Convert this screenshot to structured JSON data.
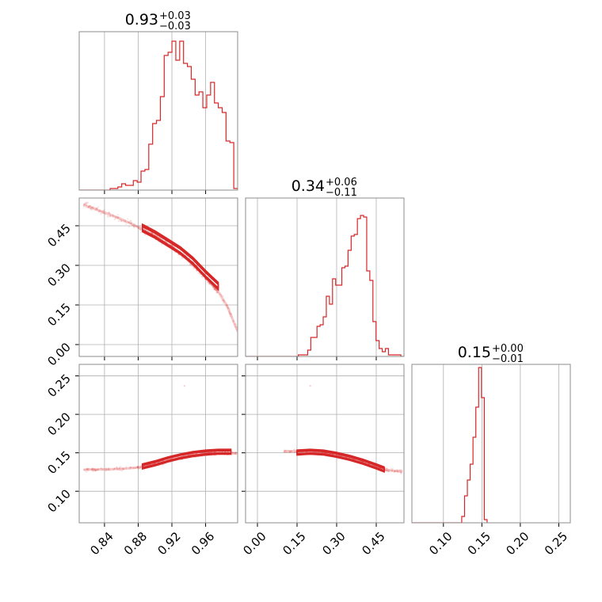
{
  "colors": {
    "accent": "#d62728",
    "frame": "#8c8c8c",
    "grid": "#b0b0b0"
  },
  "chart_data": {
    "type": "corner",
    "parameters": [
      {
        "title_value": "0.93",
        "title_plus": "+0.03",
        "title_minus": "−0.03",
        "range": [
          0.81,
          0.998
        ],
        "ticks": [
          0.84,
          0.88,
          0.92,
          0.96
        ],
        "tick_labels": [
          "0.84",
          "0.88",
          "0.92",
          "0.96"
        ]
      },
      {
        "title_value": "0.34",
        "title_plus": "+0.06",
        "title_minus": "−0.11",
        "range": [
          -0.045,
          0.555
        ],
        "ticks": [
          0.0,
          0.15,
          0.3,
          0.45
        ],
        "tick_labels": [
          "0.00",
          "0.15",
          "0.30",
          "0.45"
        ]
      },
      {
        "title_value": "0.15",
        "title_plus": "+0.00",
        "title_minus": "−0.01",
        "range": [
          0.059,
          0.265
        ],
        "ticks": [
          0.1,
          0.15,
          0.2,
          0.25
        ],
        "tick_labels": [
          "0.10",
          "0.15",
          "0.20",
          "0.25"
        ]
      }
    ],
    "hist1": {
      "edges": [
        0.81,
        0.998
      ],
      "values": [
        0,
        0,
        0,
        0,
        0,
        0,
        0,
        0,
        0.01,
        0.01,
        0.02,
        0.04,
        0.03,
        0.03,
        0.06,
        0.05,
        0.12,
        0.13,
        0.29,
        0.42,
        0.44,
        0.59,
        0.85,
        0.87,
        0.94,
        0.82,
        0.94,
        0.8,
        0.78,
        0.7,
        0.6,
        0.62,
        0.52,
        0.6,
        0.68,
        0.55,
        0.52,
        0.49,
        0.31,
        0.3,
        0.01
      ]
    },
    "hist2": {
      "edges": [
        -0.045,
        0.555
      ],
      "values": [
        0,
        0,
        0,
        0,
        0,
        0,
        0,
        0,
        0,
        0,
        0,
        0,
        0,
        0,
        0,
        0,
        0,
        0.01,
        0.01,
        0.01,
        0.04,
        0.12,
        0.12,
        0.19,
        0.2,
        0.25,
        0.38,
        0.33,
        0.49,
        0.45,
        0.45,
        0.56,
        0.57,
        0.67,
        0.76,
        0.77,
        0.87,
        0.89,
        0.88,
        0.54,
        0.48,
        0.22,
        0.1,
        0.05,
        0.03,
        0.05,
        0.01,
        0.01,
        0.01,
        0.01,
        0
      ]
    },
    "hist3": {
      "edges": [
        0.1238,
        0.1568
      ],
      "values": [
        0.04,
        0.17,
        0.27,
        0.37,
        0.54,
        0.73,
        0.98,
        0.79,
        0.02
      ]
    },
    "curve_12": {
      "x": [
        0.815,
        0.84,
        0.86,
        0.88,
        0.9,
        0.92,
        0.94,
        0.96,
        0.975,
        0.985,
        0.998
      ],
      "y": [
        0.53,
        0.5,
        0.475,
        0.445,
        0.41,
        0.37,
        0.32,
        0.255,
        0.2,
        0.15,
        0.05
      ]
    },
    "contours_12": {
      "x": [
        0.885,
        0.9,
        0.915,
        0.93,
        0.945,
        0.96,
        0.975
      ],
      "y": [
        0.44,
        0.415,
        0.385,
        0.355,
        0.315,
        0.265,
        0.22
      ]
    },
    "curve_13": {
      "x": [
        0.815,
        0.86,
        0.88,
        0.9,
        0.92,
        0.94,
        0.96,
        0.98,
        0.998
      ],
      "y": [
        0.128,
        0.129,
        0.131,
        0.136,
        0.141,
        0.146,
        0.149,
        0.15,
        0.149
      ]
    },
    "contours_13": {
      "x": [
        0.885,
        0.9,
        0.915,
        0.93,
        0.945,
        0.96,
        0.975,
        0.99
      ],
      "y": [
        0.132,
        0.136,
        0.141,
        0.145,
        0.148,
        0.15,
        0.151,
        0.151
      ]
    },
    "curve_23": {
      "x": [
        0.1,
        0.15,
        0.2,
        0.25,
        0.3,
        0.35,
        0.4,
        0.45,
        0.5,
        0.55
      ],
      "y": [
        0.152,
        0.152,
        0.152,
        0.15,
        0.147,
        0.143,
        0.138,
        0.132,
        0.127,
        0.126
      ]
    },
    "contours_23": {
      "x": [
        0.15,
        0.2,
        0.25,
        0.3,
        0.35,
        0.4,
        0.45,
        0.48
      ],
      "y": [
        0.15,
        0.151,
        0.15,
        0.147,
        0.143,
        0.138,
        0.132,
        0.128
      ]
    },
    "outliers": {
      "p13": [
        0.935,
        0.237
      ],
      "p23": [
        0.2,
        0.237
      ]
    }
  }
}
